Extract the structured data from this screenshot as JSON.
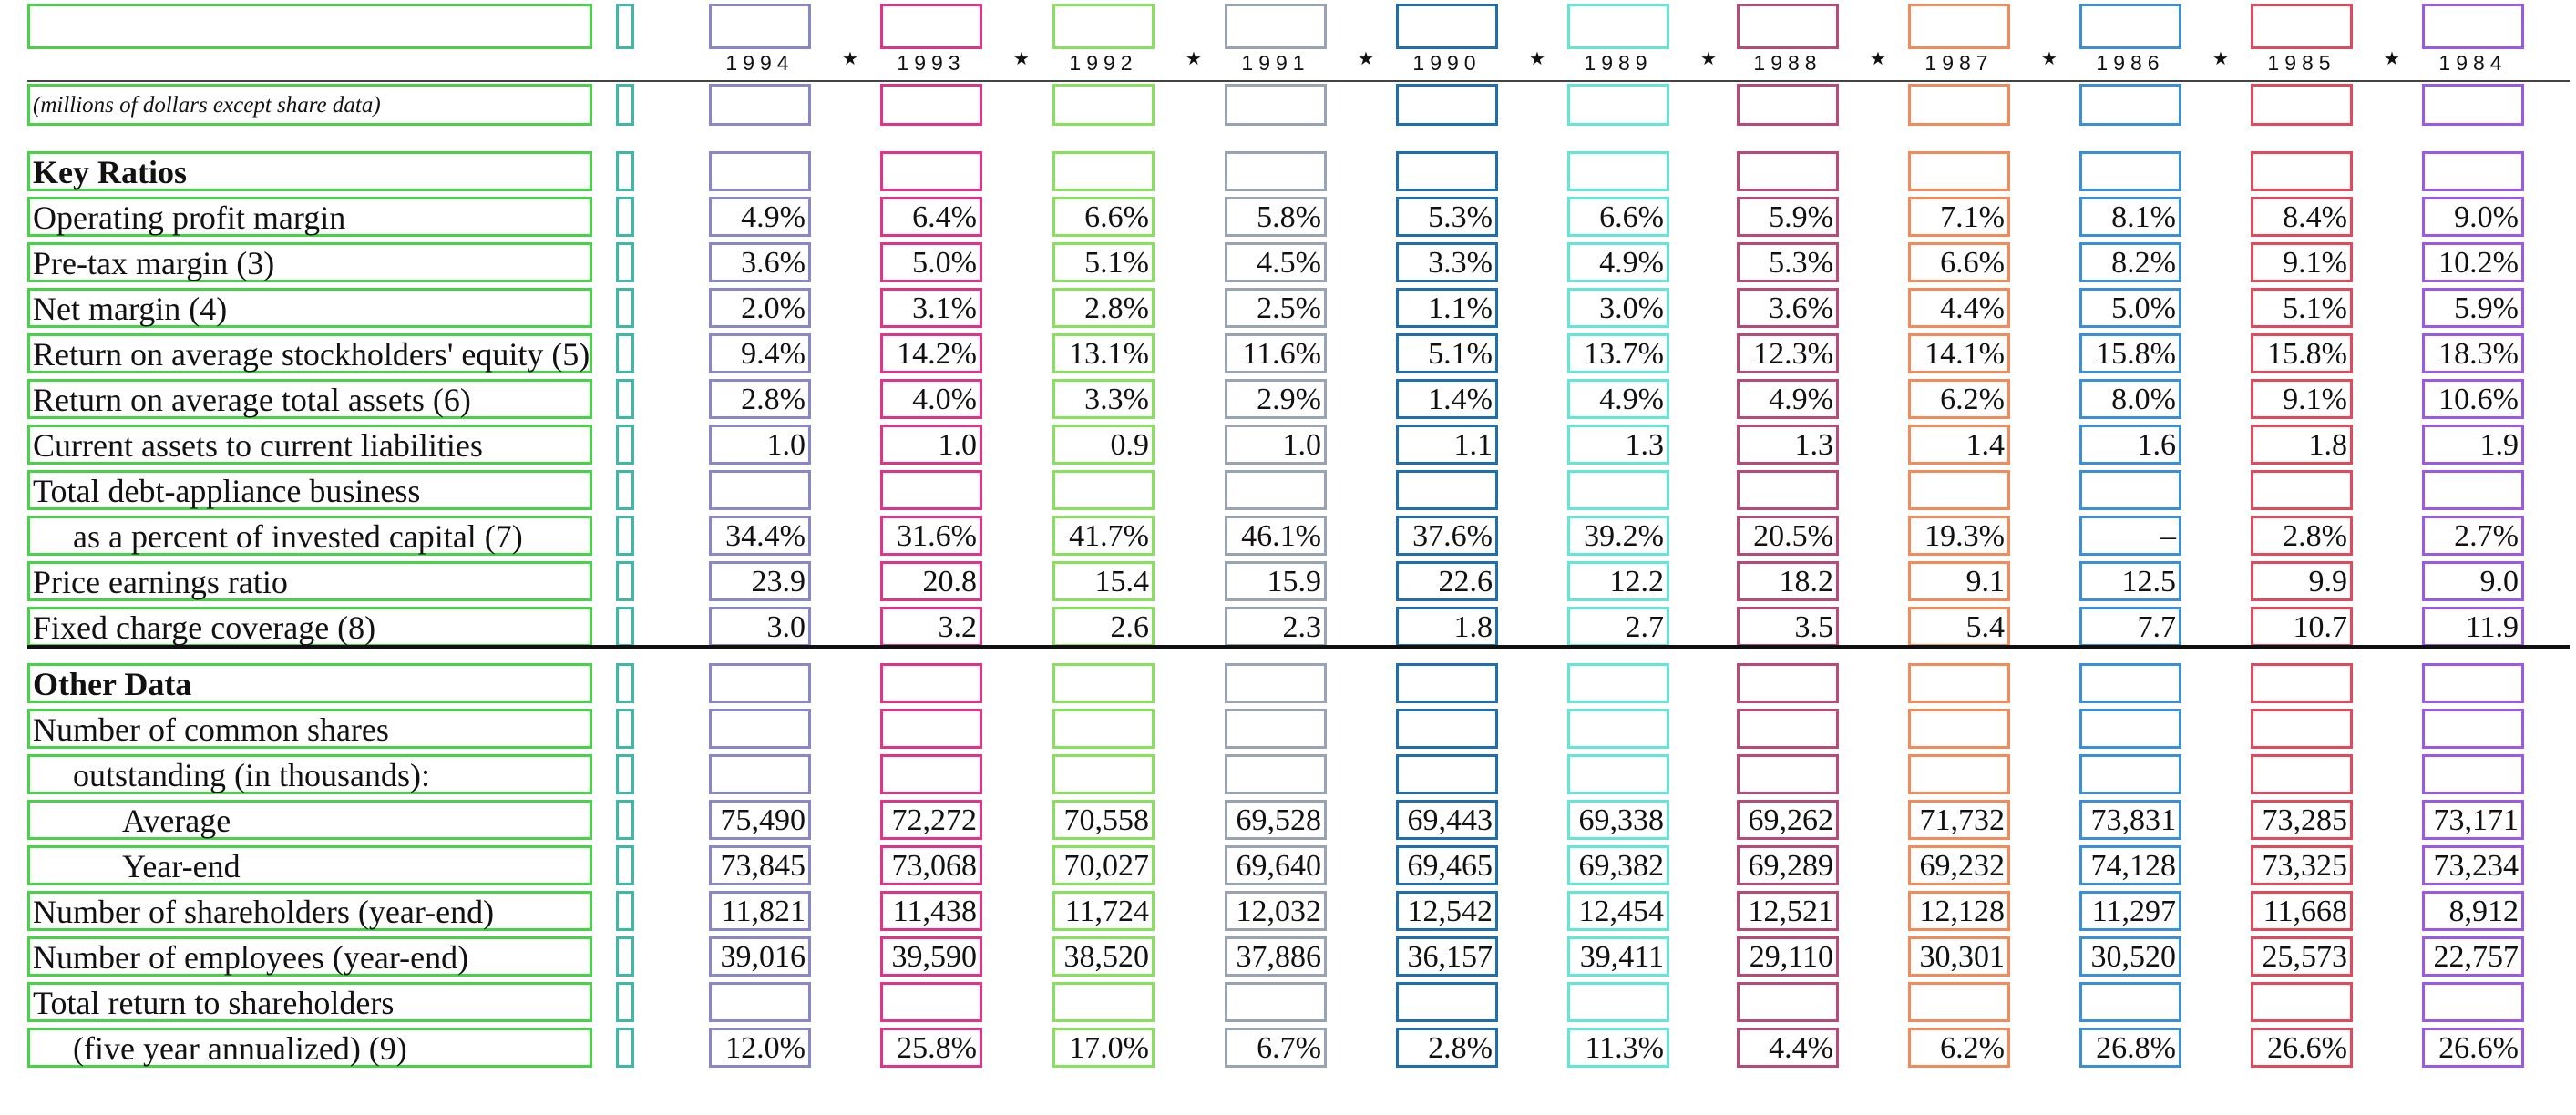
{
  "header": {
    "years": [
      "1994",
      "1993",
      "1992",
      "1991",
      "1990",
      "1989",
      "1988",
      "1987",
      "1986",
      "1985",
      "1984"
    ],
    "star": "★",
    "units_note": "(millions of dollars except share data)"
  },
  "sections": [
    {
      "title": "Key Ratios",
      "rows": [
        {
          "label": "Operating profit margin",
          "indent": 0,
          "values": [
            "4.9%",
            "6.4%",
            "6.6%",
            "5.8%",
            "5.3%",
            "6.6%",
            "5.9%",
            "7.1%",
            "8.1%",
            "8.4%",
            "9.0%"
          ]
        },
        {
          "label": "Pre-tax margin (3)",
          "indent": 0,
          "values": [
            "3.6%",
            "5.0%",
            "5.1%",
            "4.5%",
            "3.3%",
            "4.9%",
            "5.3%",
            "6.6%",
            "8.2%",
            "9.1%",
            "10.2%"
          ]
        },
        {
          "label": "Net margin (4)",
          "indent": 0,
          "values": [
            "2.0%",
            "3.1%",
            "2.8%",
            "2.5%",
            "1.1%",
            "3.0%",
            "3.6%",
            "4.4%",
            "5.0%",
            "5.1%",
            "5.9%"
          ]
        },
        {
          "label": "Return on average stockholders' equity (5)",
          "indent": 0,
          "values": [
            "9.4%",
            "14.2%",
            "13.1%",
            "11.6%",
            "5.1%",
            "13.7%",
            "12.3%",
            "14.1%",
            "15.8%",
            "15.8%",
            "18.3%"
          ]
        },
        {
          "label": "Return on average total assets (6)",
          "indent": 0,
          "values": [
            "2.8%",
            "4.0%",
            "3.3%",
            "2.9%",
            "1.4%",
            "4.9%",
            "4.9%",
            "6.2%",
            "8.0%",
            "9.1%",
            "10.6%"
          ]
        },
        {
          "label": "Current assets to current liabilities",
          "indent": 0,
          "values": [
            "1.0",
            "1.0",
            "0.9",
            "1.0",
            "1.1",
            "1.3",
            "1.3",
            "1.4",
            "1.6",
            "1.8",
            "1.9"
          ]
        },
        {
          "label": "Total debt-appliance business",
          "indent": 0,
          "values": []
        },
        {
          "label": "as a percent of invested capital (7)",
          "indent": 1,
          "values": [
            "34.4%",
            "31.6%",
            "41.7%",
            "46.1%",
            "37.6%",
            "39.2%",
            "20.5%",
            "19.3%",
            "–",
            "2.8%",
            "2.7%"
          ]
        },
        {
          "label": "Price earnings ratio",
          "indent": 0,
          "values": [
            "23.9",
            "20.8",
            "15.4",
            "15.9",
            "22.6",
            "12.2",
            "18.2",
            "9.1",
            "12.5",
            "9.9",
            "9.0"
          ]
        },
        {
          "label": "Fixed charge coverage (8)",
          "indent": 0,
          "values": [
            "3.0",
            "3.2",
            "2.6",
            "2.3",
            "1.8",
            "2.7",
            "3.5",
            "5.4",
            "7.7",
            "10.7",
            "11.9"
          ]
        }
      ]
    },
    {
      "title": "Other Data",
      "rows": [
        {
          "label": "Number of common shares",
          "indent": 0,
          "values": []
        },
        {
          "label": "outstanding (in thousands):",
          "indent": 1,
          "values": []
        },
        {
          "label": "Average",
          "indent": 2,
          "values": [
            "75,490",
            "72,272",
            "70,558",
            "69,528",
            "69,443",
            "69,338",
            "69,262",
            "71,732",
            "73,831",
            "73,285",
            "73,171"
          ]
        },
        {
          "label": "Year-end",
          "indent": 2,
          "values": [
            "73,845",
            "73,068",
            "70,027",
            "69,640",
            "69,465",
            "69,382",
            "69,289",
            "69,232",
            "74,128",
            "73,325",
            "73,234"
          ]
        },
        {
          "label": "Number of shareholders (year-end)",
          "indent": 0,
          "values": [
            "11,821",
            "11,438",
            "11,724",
            "12,032",
            "12,542",
            "12,454",
            "12,521",
            "12,128",
            "11,297",
            "11,668",
            "8,912"
          ]
        },
        {
          "label": "Number of employees (year-end)",
          "indent": 0,
          "values": [
            "39,016",
            "39,590",
            "38,520",
            "37,886",
            "36,157",
            "39,411",
            "29,110",
            "30,301",
            "30,520",
            "25,573",
            "22,757"
          ]
        },
        {
          "label": "Total return to shareholders",
          "indent": 0,
          "values": []
        },
        {
          "label": "(five year annualized) (9)",
          "indent": 1,
          "values": [
            "12.0%",
            "25.8%",
            "17.0%",
            "6.7%",
            "2.8%",
            "11.3%",
            "4.4%",
            "6.2%",
            "26.8%",
            "26.6%",
            "26.6%"
          ]
        }
      ]
    }
  ]
}
